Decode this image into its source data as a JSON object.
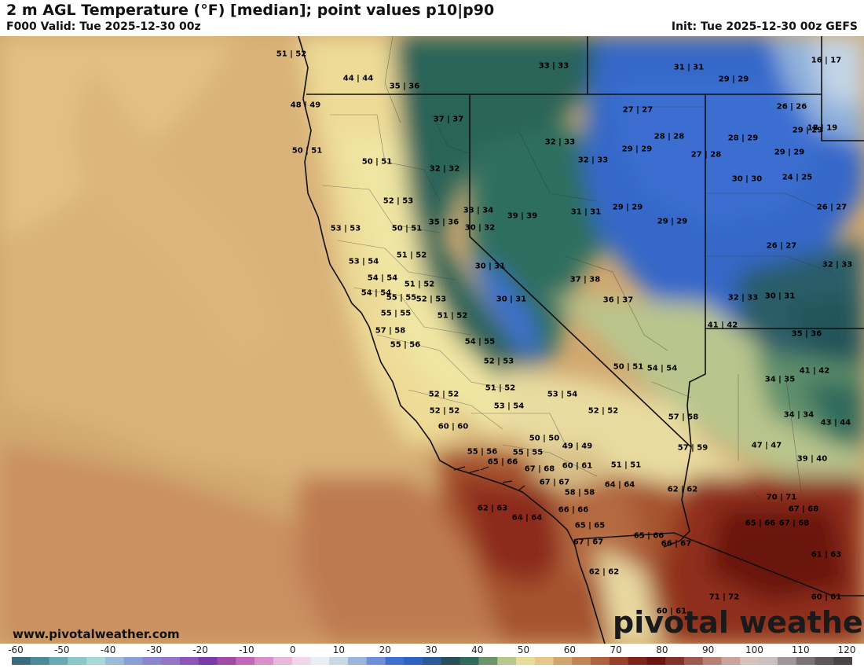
{
  "header": {
    "title": "2 m AGL Temperature (°F) [median]; point values p10|p90",
    "valid": "F000 Valid: Tue 2025-12-30 00z",
    "init": "Init: Tue 2025-12-30 00z GEFS"
  },
  "footer": {
    "site": "www.pivotalweather.com",
    "logo": "pivotal weather"
  },
  "colorbar": {
    "ticks": [
      "-60",
      "-50",
      "-40",
      "-30",
      "-20",
      "-10",
      "0",
      "10",
      "20",
      "30",
      "40",
      "50",
      "60",
      "70",
      "80",
      "90",
      "100",
      "110",
      "120"
    ],
    "colors": [
      "#3b6b7e",
      "#4d8a99",
      "#69a9b3",
      "#8cc7c9",
      "#a6d8d5",
      "#9bbcd8",
      "#8a9fd4",
      "#8a86cf",
      "#9474c6",
      "#8c55b8",
      "#7b3aa8",
      "#a24ba6",
      "#c267ba",
      "#d88fca",
      "#e8b7da",
      "#f0d6e8",
      "#e8eef2",
      "#c9d7e6",
      "#9cb4dd",
      "#6f8fd8",
      "#3f6fd0",
      "#2f62c3",
      "#2a5a98",
      "#264f58",
      "#2f6a5a",
      "#6b9467",
      "#b7c78e",
      "#e7dd99",
      "#e7c788",
      "#d2a46e",
      "#c28455",
      "#b0613f",
      "#9b3f2a",
      "#7e2418",
      "#6d1511",
      "#82322a",
      "#9e5a4f",
      "#b98176",
      "#cba39a",
      "#d8c2bc",
      "#c9c0bf",
      "#9f9797",
      "#7c7474",
      "#5e5757",
      "#4a4545"
    ]
  },
  "points": [
    {
      "label": "51 | 52"
    },
    {
      "label": "44 | 44"
    },
    {
      "label": "35 | 36"
    },
    {
      "label": "33 | 33"
    },
    {
      "label": "31 | 31"
    },
    {
      "label": "29 | 29"
    },
    {
      "label": "16 | 17"
    },
    {
      "label": "48 | 49"
    },
    {
      "label": "37 | 37"
    },
    {
      "label": "27 | 27"
    },
    {
      "label": "26 | 26"
    },
    {
      "label": "29 | 29"
    },
    {
      "label": "18 | 19"
    },
    {
      "label": "50 | 51"
    },
    {
      "label": "32 | 33"
    },
    {
      "label": "28 | 28"
    },
    {
      "label": "29 | 29"
    },
    {
      "label": "28 | 29"
    },
    {
      "label": "29 | 29"
    },
    {
      "label": "50 | 51"
    },
    {
      "label": "32 | 32"
    },
    {
      "label": "32 | 33"
    },
    {
      "label": "27 | 28"
    },
    {
      "label": "30 | 30"
    },
    {
      "label": "24 | 25"
    },
    {
      "label": "52 | 53"
    },
    {
      "label": "33 | 34"
    },
    {
      "label": "39 | 39"
    },
    {
      "label": "31 | 31"
    },
    {
      "label": "29 | 29"
    },
    {
      "label": "26 | 27"
    },
    {
      "label": "53 | 53"
    },
    {
      "label": "50 | 51"
    },
    {
      "label": "35 | 36"
    },
    {
      "label": "30 | 32"
    },
    {
      "label": "29 | 29"
    },
    {
      "label": "53 | 54"
    },
    {
      "label": "51 | 52"
    },
    {
      "label": "26 | 27"
    },
    {
      "label": "30 | 31"
    },
    {
      "label": "32 | 33"
    },
    {
      "label": "54 | 54"
    },
    {
      "label": "51 | 52"
    },
    {
      "label": "37 | 38"
    },
    {
      "label": "54 | 54"
    },
    {
      "label": "55 | 55"
    },
    {
      "label": "52 | 53"
    },
    {
      "label": "30 | 31"
    },
    {
      "label": "36 | 37"
    },
    {
      "label": "32 | 33"
    },
    {
      "label": "30 | 31"
    },
    {
      "label": "55 | 55"
    },
    {
      "label": "51 | 52"
    },
    {
      "label": "41 | 42"
    },
    {
      "label": "57 | 58"
    },
    {
      "label": "54 | 55"
    },
    {
      "label": "35 | 36"
    },
    {
      "label": "55 | 56"
    },
    {
      "label": "52 | 53"
    },
    {
      "label": "50 | 51"
    },
    {
      "label": "54 | 54"
    },
    {
      "label": "41 | 42"
    },
    {
      "label": "51 | 52"
    },
    {
      "label": "34 | 35"
    },
    {
      "label": "52 | 52"
    },
    {
      "label": "53 | 54"
    },
    {
      "label": "53 | 54"
    },
    {
      "label": "52 | 52"
    },
    {
      "label": "52 | 52"
    },
    {
      "label": "57 | 58"
    },
    {
      "label": "34 | 34"
    },
    {
      "label": "43 | 44"
    },
    {
      "label": "60 | 60"
    },
    {
      "label": "50 | 50"
    },
    {
      "label": "49 | 49"
    },
    {
      "label": "57 | 59"
    },
    {
      "label": "47 | 47"
    },
    {
      "label": "55 | 56"
    },
    {
      "label": "55 | 55"
    },
    {
      "label": "39 | 40"
    },
    {
      "label": "65 | 66"
    },
    {
      "label": "60 | 61"
    },
    {
      "label": "51 | 51"
    },
    {
      "label": "67 | 68"
    },
    {
      "label": "67 | 67"
    },
    {
      "label": "64 | 64"
    },
    {
      "label": "62 | 62"
    },
    {
      "label": "58 | 58"
    },
    {
      "label": "70 | 71"
    },
    {
      "label": "62 | 63"
    },
    {
      "label": "66 | 66"
    },
    {
      "label": "67 | 68"
    },
    {
      "label": "64 | 64"
    },
    {
      "label": "65 | 66"
    },
    {
      "label": "67 | 68"
    },
    {
      "label": "65 | 65"
    },
    {
      "label": "67 | 67"
    },
    {
      "label": "65 | 66"
    },
    {
      "label": "66 | 67"
    },
    {
      "label": "61 | 63"
    },
    {
      "label": "62 | 62"
    },
    {
      "label": "71 | 72"
    },
    {
      "label": "60 | 61"
    },
    {
      "label": "60 | 61"
    }
  ]
}
